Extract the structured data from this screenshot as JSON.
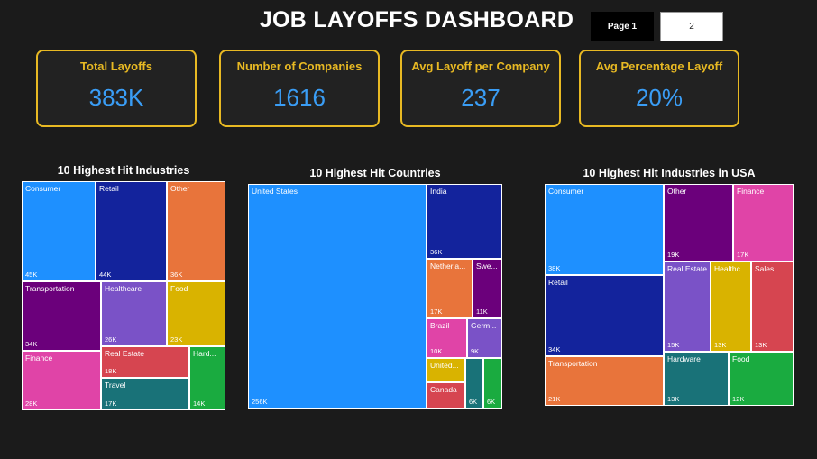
{
  "header": {
    "title": "JOB LAYOFFS DASHBOARD",
    "pages": [
      {
        "label": "Page 1",
        "active": true
      },
      {
        "label": "2",
        "active": false
      }
    ]
  },
  "kpis": [
    {
      "label": "Total Layoffs",
      "value": "383K"
    },
    {
      "label": "Number of Companies",
      "value": "1616"
    },
    {
      "label": "Avg Layoff per Company",
      "value": "237"
    },
    {
      "label": "Avg Percentage Layoff",
      "value": "20%"
    }
  ],
  "colors": {
    "accent": "#e8b923",
    "kpi_value": "#3a9df5",
    "background": "#1b1b1b"
  },
  "chart_data": [
    {
      "type": "treemap",
      "title": "10 Highest Hit Industries",
      "items": [
        {
          "name": "Consumer",
          "label": "45K",
          "value": 45,
          "color": "#1e90ff"
        },
        {
          "name": "Retail",
          "label": "44K",
          "value": 44,
          "color": "#13239c"
        },
        {
          "name": "Other",
          "label": "36K",
          "value": 36,
          "color": "#e8743b"
        },
        {
          "name": "Transportation",
          "label": "34K",
          "value": 34,
          "color": "#6b007b"
        },
        {
          "name": "Healthcare",
          "label": "26K",
          "value": 26,
          "color": "#7a52c7"
        },
        {
          "name": "Food",
          "label": "23K",
          "value": 23,
          "color": "#d9b300"
        },
        {
          "name": "Finance",
          "label": "28K",
          "value": 28,
          "color": "#e044a7"
        },
        {
          "name": "Real Estate",
          "label": "18K",
          "value": 18,
          "color": "#d64550"
        },
        {
          "name": "Hard...",
          "label": "14K",
          "value": 14,
          "color": "#1aab40"
        },
        {
          "name": "Travel",
          "label": "17K",
          "value": 17,
          "color": "#197278"
        }
      ]
    },
    {
      "type": "treemap",
      "title": "10 Highest Hit Countries",
      "items": [
        {
          "name": "United States",
          "label": "256K",
          "value": 256,
          "color": "#1e90ff"
        },
        {
          "name": "India",
          "label": "36K",
          "value": 36,
          "color": "#13239c"
        },
        {
          "name": "Netherla...",
          "label": "17K",
          "value": 17,
          "color": "#e8743b"
        },
        {
          "name": "Swe...",
          "label": "11K",
          "value": 11,
          "color": "#6b007b"
        },
        {
          "name": "Brazil",
          "label": "10K",
          "value": 10,
          "color": "#e044a7"
        },
        {
          "name": "Germ...",
          "label": "9K",
          "value": 9,
          "color": "#7a52c7"
        },
        {
          "name": "United...",
          "label": "",
          "value": 7,
          "color": "#d9b300"
        },
        {
          "name": "Canada",
          "label": "",
          "value": 7,
          "color": "#d64550"
        },
        {
          "name": "",
          "label": "6K",
          "value": 6,
          "color": "#197278"
        },
        {
          "name": "",
          "label": "6K",
          "value": 6,
          "color": "#1aab40"
        }
      ]
    },
    {
      "type": "treemap",
      "title": "10 Highest Hit Industries in USA",
      "items": [
        {
          "name": "Consumer",
          "label": "38K",
          "value": 38,
          "color": "#1e90ff"
        },
        {
          "name": "Retail",
          "label": "34K",
          "value": 34,
          "color": "#13239c"
        },
        {
          "name": "Transportation",
          "label": "21K",
          "value": 21,
          "color": "#e8743b"
        },
        {
          "name": "Other",
          "label": "19K",
          "value": 19,
          "color": "#6b007b"
        },
        {
          "name": "Finance",
          "label": "17K",
          "value": 17,
          "color": "#e044a7"
        },
        {
          "name": "Real Estate",
          "label": "15K",
          "value": 15,
          "color": "#7a52c7"
        },
        {
          "name": "Healthc...",
          "label": "13K",
          "value": 13,
          "color": "#d9b300"
        },
        {
          "name": "Sales",
          "label": "13K",
          "value": 13,
          "color": "#d64550"
        },
        {
          "name": "Hardware",
          "label": "13K",
          "value": 13,
          "color": "#197278"
        },
        {
          "name": "Food",
          "label": "12K",
          "value": 12,
          "color": "#1aab40"
        }
      ]
    }
  ]
}
